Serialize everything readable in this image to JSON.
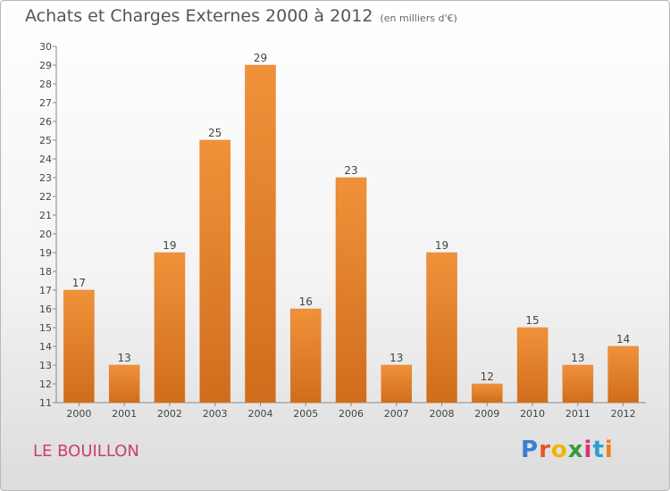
{
  "title": "Achats et Charges Externes 2000 à 2012",
  "subtitle": "(en milliers d'€)",
  "place": "LE BOUILLON",
  "logo": {
    "letters": [
      "P",
      "r",
      "o",
      "x",
      "i",
      "t",
      "i"
    ],
    "colors": [
      "#3a7fcf",
      "#e8542a",
      "#f0b400",
      "#3a9a3a",
      "#d4357a",
      "#2aa0d8",
      "#f07f1a"
    ]
  },
  "colors": {
    "bar": "#f0923a",
    "bar_dark": "#d06d1c",
    "axis": "#888888",
    "grid": "#dddddd"
  },
  "chart_data": {
    "type": "bar",
    "categories": [
      "2000",
      "2001",
      "2002",
      "2003",
      "2004",
      "2005",
      "2006",
      "2007",
      "2008",
      "2009",
      "2010",
      "2011",
      "2012"
    ],
    "values": [
      17,
      13,
      19,
      25,
      29,
      16,
      23,
      13,
      19,
      12,
      15,
      13,
      14
    ],
    "data_labels": [
      "17",
      "13",
      "19",
      "25",
      "29",
      "16",
      "23",
      "13",
      "19",
      "12",
      "15",
      "13",
      "14"
    ],
    "yticks": [
      "11",
      "12",
      "13",
      "14",
      "15",
      "16",
      "17",
      "18",
      "19",
      "20",
      "21",
      "22",
      "23",
      "24",
      "25",
      "26",
      "27",
      "28",
      "29",
      "30"
    ],
    "ylim": [
      11,
      30
    ],
    "grid": false,
    "legend": "none"
  }
}
